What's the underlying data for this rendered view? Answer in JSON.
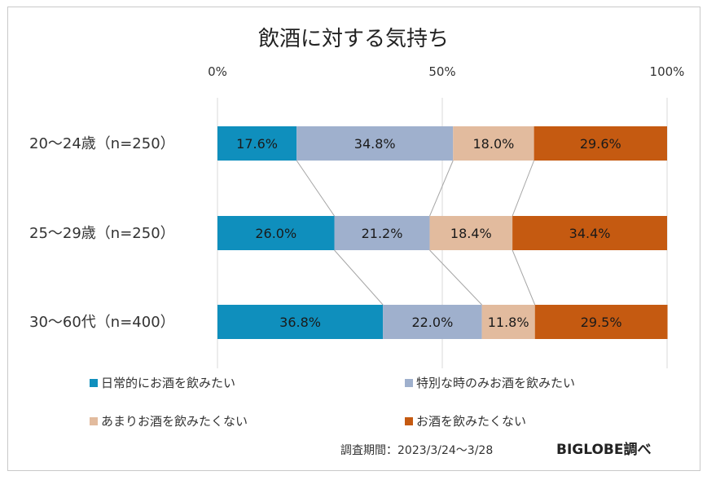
{
  "chart_data": {
    "type": "bar",
    "orientation": "horizontal",
    "stacked": "percent",
    "title": "飲酒に対する気持ち",
    "categories": [
      "20〜24歳（n=250）",
      "25〜29歳（n=250）",
      "30〜60代（n=400）"
    ],
    "series": [
      {
        "name": "日常的にお酒を飲みたい",
        "color": "#0f8fbd",
        "values": [
          17.6,
          26.0,
          36.8
        ]
      },
      {
        "name": "特別な時のみお酒を飲みたい",
        "color": "#9fb0cd",
        "values": [
          34.8,
          21.2,
          22.0
        ]
      },
      {
        "name": "あまりお酒を飲みたくない",
        "color": "#e2bb9e",
        "values": [
          18.0,
          18.4,
          11.8
        ]
      },
      {
        "name": "お酒を飲みたくない",
        "color": "#c55a11",
        "values": [
          29.6,
          34.4,
          29.5
        ]
      }
    ],
    "data_labels": [
      [
        "17.6%",
        "26.0%",
        "36.8%"
      ],
      [
        "34.8%",
        "21.2%",
        "22.0%"
      ],
      [
        "18.0%",
        "18.4%",
        "11.8%"
      ],
      [
        "29.6%",
        "34.4%",
        "29.5%"
      ]
    ],
    "xlim": [
      0,
      100
    ],
    "x_ticks": [
      0,
      50,
      100
    ],
    "x_tick_labels": [
      "0%",
      "50%",
      "100%"
    ],
    "series_lines": true,
    "legend": "bottom"
  },
  "footer": {
    "survey_period": "調査期間：2023/3/24〜3/28",
    "brand": "BIGLOBE調べ"
  }
}
